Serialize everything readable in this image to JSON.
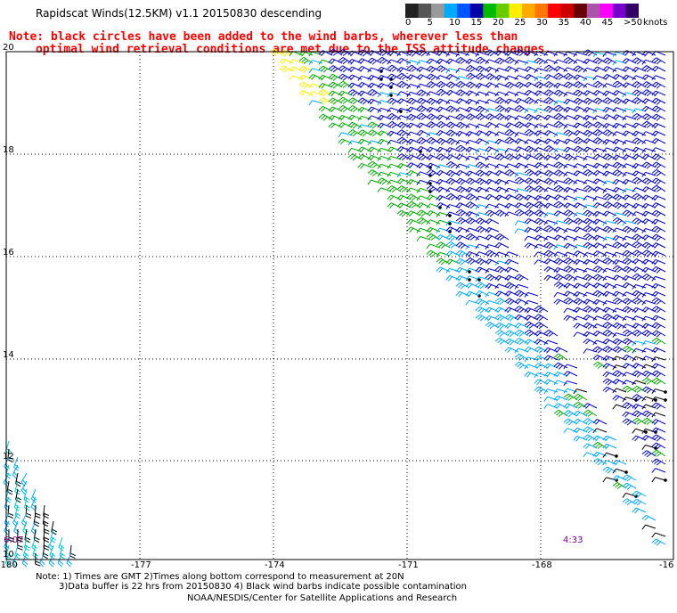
{
  "title": "Rapidscat Winds(12.5KM) v1.1 20150830 descending",
  "note_line1": "Note: black circles have been added to the wind barbs, wherever less than",
  "note_line2": "optimal wind retrieval conditions are met due to the ISS attitude changes.",
  "legend": {
    "unit": "knots",
    "ticks": [
      "0",
      "5",
      "10",
      "15",
      "20",
      "25",
      "30",
      "35",
      "40",
      "45",
      ">50"
    ],
    "colors": [
      "#222222",
      "#555555",
      "#999999",
      "#00aaff",
      "#0055ff",
      "#0000aa",
      "#00bb00",
      "#66cc00",
      "#ffee00",
      "#ffaa00",
      "#ff7700",
      "#ff0000",
      "#cc0000",
      "#660000",
      "#aa55aa",
      "#ff00ff",
      "#7700cc",
      "#330066"
    ]
  },
  "lat_labels": [
    "20",
    "18",
    "16",
    "14",
    "12",
    "10"
  ],
  "lon_labels": [
    "-180",
    "-177",
    "-174",
    "-171",
    "-168",
    "-16"
  ],
  "time_labels": {
    "left": "6:07",
    "right": "4:33"
  },
  "footnote_line1": "Note: 1) Times are GMT 2)Times along bottom correspond to measurement at 20N",
  "footnote_line2": "3)Data buffer is 22 hrs from 20150830 4) Black wind barbs indicate possible contamination",
  "credit": "NOAA/NESDIS/Center for Satellite Applications and Research",
  "colors": {
    "barb_blue": "#0000cc",
    "barb_lightblue": "#00aaff",
    "barb_cyan": "#00cccc",
    "barb_green": "#00aa00",
    "barb_lightgreen": "#66cc00",
    "barb_yellow": "#ffee00",
    "barb_black": "#000000",
    "note_red": "#ff0000",
    "time_purple": "#800080"
  }
}
